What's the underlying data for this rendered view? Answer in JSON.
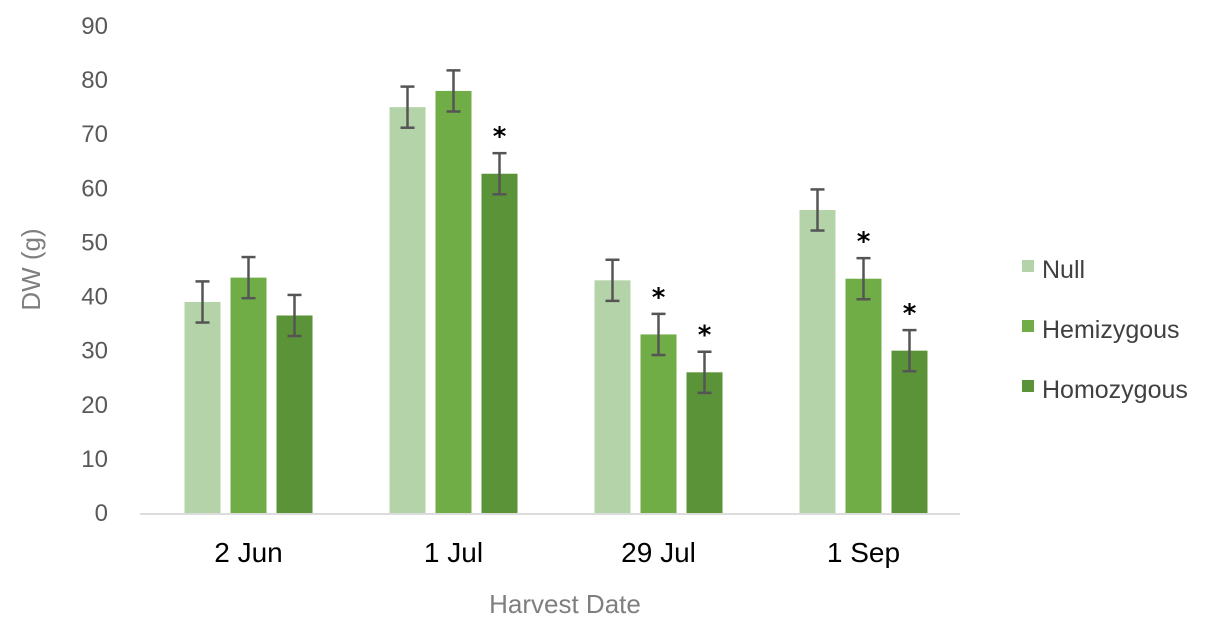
{
  "chart_data": {
    "type": "bar",
    "title": "",
    "xlabel": "Harvest Date",
    "ylabel": "DW (g)",
    "ylim": [
      0,
      90
    ],
    "yticks": [
      0,
      10,
      20,
      30,
      40,
      50,
      60,
      70,
      80,
      90
    ],
    "categories": [
      "2 Jun",
      "1 Jul",
      "29 Jul",
      "1 Sep"
    ],
    "grid": false,
    "legend_position": "right",
    "series": [
      {
        "name": "Null",
        "color": "#b5d3a8",
        "values": [
          39,
          75,
          43,
          56
        ],
        "errors": [
          3.8,
          3.8,
          3.8,
          3.8
        ],
        "significant": [
          false,
          false,
          false,
          false
        ]
      },
      {
        "name": "Hemizygous",
        "color": "#70ad47",
        "values": [
          43.5,
          78,
          33,
          43.3
        ],
        "errors": [
          3.8,
          3.8,
          3.8,
          3.8
        ],
        "significant": [
          false,
          false,
          true,
          true
        ]
      },
      {
        "name": "Homozygous",
        "color": "#5b9339",
        "values": [
          36.5,
          62.7,
          26,
          30
        ],
        "errors": [
          3.8,
          3.8,
          3.8,
          3.8
        ],
        "significant": [
          false,
          true,
          true,
          true
        ]
      }
    ],
    "significance_symbol": "*"
  }
}
